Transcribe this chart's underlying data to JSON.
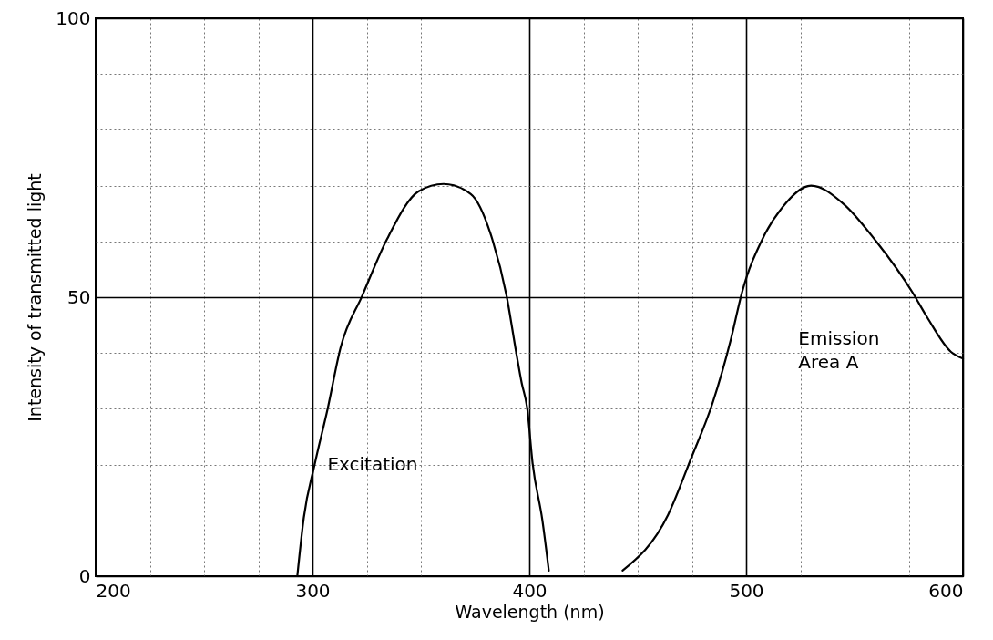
{
  "chart_data": {
    "type": "line",
    "xlabel": "Wavelength (nm)",
    "ylabel": "Intensity of transmitted light",
    "xlim": [
      200,
      600
    ],
    "ylim": [
      0,
      100
    ],
    "xticks": [
      200,
      {
        "value": 225,
        "label": null
      },
      {
        "value": 250,
        "label": null
      },
      {
        "value": 275,
        "label": null
      },
      300,
      {
        "value": 325,
        "label": null
      },
      {
        "value": 350,
        "label": null
      },
      {
        "value": 375,
        "label": null
      },
      400,
      {
        "value": 425,
        "label": null
      },
      {
        "value": 450,
        "label": null
      },
      {
        "value": 475,
        "label": null
      },
      500,
      {
        "value": 525,
        "label": null
      },
      {
        "value": 550,
        "label": null
      },
      {
        "value": 575,
        "label": null
      },
      600
    ],
    "yticks": [
      0,
      {
        "value": 10,
        "label": null
      },
      {
        "value": 20,
        "label": null
      },
      {
        "value": 30,
        "label": null
      },
      {
        "value": 40,
        "label": null
      },
      50,
      {
        "value": 60,
        "label": null
      },
      {
        "value": 70,
        "label": null
      },
      {
        "value": 80,
        "label": null
      },
      {
        "value": 90,
        "label": null
      },
      100
    ],
    "grid": true,
    "legend": false,
    "marker": "none",
    "line_style": "solid",
    "series": [
      {
        "name": "Excitation",
        "color": "#000000",
        "x": [
          293,
          296,
          301,
          307,
          313,
          323,
          334.5,
          349,
          360.5,
          373,
          383,
          389.5,
          394,
          396.5,
          399,
          401.5,
          406,
          409
        ],
        "values": [
          0,
          10.5,
          20,
          30,
          41,
          50.3,
          60.5,
          69,
          70.3,
          68.5,
          60.3,
          50.3,
          40,
          34.6,
          30.2,
          20.3,
          10.1,
          1
        ]
      },
      {
        "name": "Emission Area A",
        "color": "#000000",
        "x": [
          443,
          464,
          474.5,
          484.5,
          493,
          498,
          508,
          516.5,
          530,
          545,
          560,
          577,
          583.5,
          594.5,
          600
        ],
        "values": [
          1,
          11,
          21,
          31,
          42.5,
          50.7,
          60.8,
          66,
          70,
          66.7,
          60,
          50.7,
          46.4,
          40.2,
          39
        ]
      }
    ]
  }
}
